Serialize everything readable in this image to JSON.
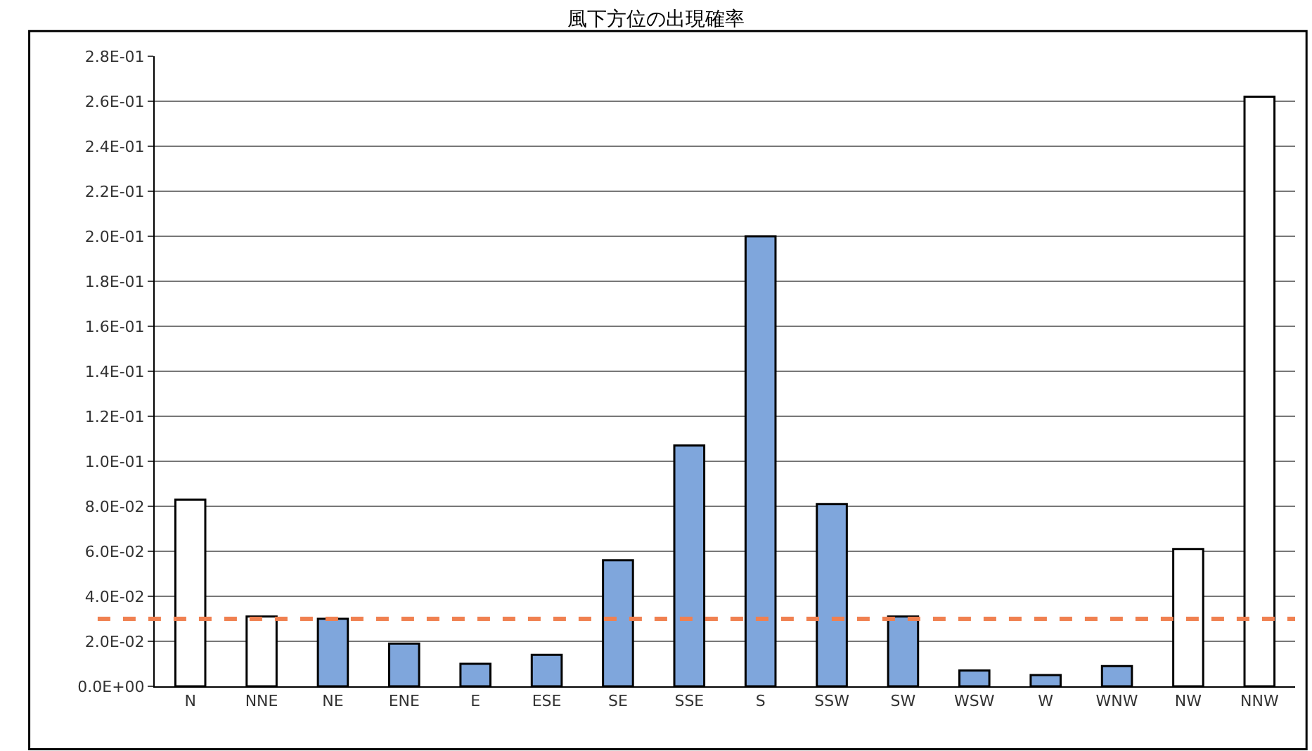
{
  "chart_data": {
    "type": "bar",
    "title": "風下方位の出現確率",
    "categories": [
      "N",
      "NNE",
      "NE",
      "ENE",
      "E",
      "ESE",
      "SE",
      "SSE",
      "S",
      "SSW",
      "SW",
      "WSW",
      "W",
      "WNW",
      "NW",
      "NNW"
    ],
    "values": [
      0.083,
      0.031,
      0.03,
      0.019,
      0.01,
      0.014,
      0.056,
      0.107,
      0.2,
      0.081,
      0.031,
      0.007,
      0.005,
      0.009,
      0.061,
      0.262
    ],
    "colors": [
      "#ffffff",
      "#ffffff",
      "#7fa6dc",
      "#7fa6dc",
      "#7fa6dc",
      "#7fa6dc",
      "#7fa6dc",
      "#7fa6dc",
      "#7fa6dc",
      "#7fa6dc",
      "#7fa6dc",
      "#7fa6dc",
      "#7fa6dc",
      "#7fa6dc",
      "#ffffff",
      "#ffffff"
    ],
    "ylim": [
      0,
      0.28
    ],
    "yticks": [
      {
        "value": 0,
        "label": "0.0E+00"
      },
      {
        "value": 0.02,
        "label": "2.0E-02"
      },
      {
        "value": 0.04,
        "label": "4.0E-02"
      },
      {
        "value": 0.06,
        "label": "6.0E-02"
      },
      {
        "value": 0.08,
        "label": "8.0E-02"
      },
      {
        "value": 0.1,
        "label": "1.0E-01"
      },
      {
        "value": 0.12,
        "label": "1.2E-01"
      },
      {
        "value": 0.14,
        "label": "1.4E-01"
      },
      {
        "value": 0.16,
        "label": "1.6E-01"
      },
      {
        "value": 0.18,
        "label": "1.8E-01"
      },
      {
        "value": 0.2,
        "label": "2.0E-01"
      },
      {
        "value": 0.22,
        "label": "2.2E-01"
      },
      {
        "value": 0.24,
        "label": "2.4E-01"
      },
      {
        "value": 0.26,
        "label": "2.6E-01"
      },
      {
        "value": 0.28,
        "label": "2.8E-01"
      }
    ],
    "grid": "y",
    "ref_lines": [
      {
        "axis": "y",
        "value": 0.03,
        "color": "#f08050",
        "line_style": "dashed"
      }
    ]
  }
}
